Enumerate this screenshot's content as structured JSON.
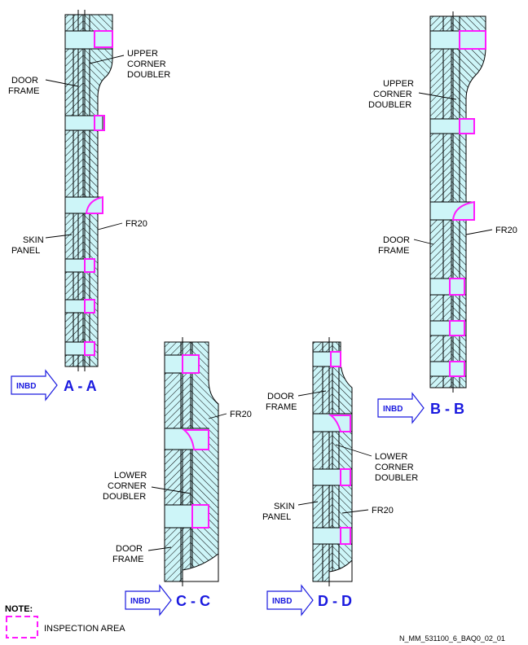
{
  "sections": [
    {
      "id": "A",
      "title": "A - A",
      "inbd": "INBD"
    },
    {
      "id": "B",
      "title": "B - B",
      "inbd": "INBD"
    },
    {
      "id": "C",
      "title": "C - C",
      "inbd": "INBD"
    },
    {
      "id": "D",
      "title": "D - D",
      "inbd": "INBD"
    }
  ],
  "labels": {
    "upper_corner_doubler_1": "UPPER",
    "upper_corner_doubler_2": "CORNER",
    "upper_corner_doubler_3": "DOUBLER",
    "lower_corner_doubler_1": "LOWER",
    "lower_corner_doubler_2": "CORNER",
    "lower_corner_doubler_3": "DOUBLER",
    "door_frame_1": "DOOR",
    "door_frame_2": "FRAME",
    "skin_panel_1": "SKIN",
    "skin_panel_2": "PANEL",
    "fr20": "FR20"
  },
  "note": {
    "title": "NOTE:",
    "legend": "INSPECTION AREA"
  },
  "reference": "N_MM_531100_6_BAQ0_02_01",
  "colors": {
    "hole_fill": "#cdf5f8",
    "inspection": "#ff19ff",
    "section_text": "#1a1adf"
  }
}
